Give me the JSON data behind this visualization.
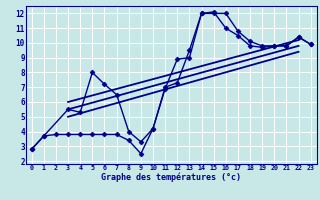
{
  "xlabel": "Graphe des températures (°c)",
  "bg_color": "#c8e8e8",
  "grid_color": "#ffffff",
  "line_color": "#00008b",
  "xlim": [
    -0.5,
    23.5
  ],
  "ylim": [
    1.8,
    12.5
  ],
  "xticks": [
    0,
    1,
    2,
    3,
    4,
    5,
    6,
    7,
    8,
    9,
    10,
    11,
    12,
    13,
    14,
    15,
    16,
    17,
    18,
    19,
    20,
    21,
    22,
    23
  ],
  "yticks": [
    2,
    3,
    4,
    5,
    6,
    7,
    8,
    9,
    10,
    11,
    12
  ],
  "series": [
    {
      "x": [
        0,
        1,
        3,
        4,
        5,
        6,
        7,
        8,
        9,
        10,
        11,
        12,
        13,
        14,
        15,
        16,
        17,
        18,
        19,
        20,
        21,
        22,
        23
      ],
      "y": [
        2.8,
        3.7,
        5.5,
        5.3,
        8.0,
        7.2,
        6.5,
        4.0,
        3.3,
        4.2,
        7.0,
        7.3,
        9.5,
        12.0,
        12.1,
        11.0,
        10.5,
        9.8,
        9.7,
        9.8,
        9.8,
        10.4,
        9.9
      ],
      "marker": "D",
      "markersize": 2.5,
      "linewidth": 1.0,
      "zorder": 3
    },
    {
      "x": [
        0,
        1,
        2,
        3,
        4,
        5,
        6,
        7,
        8,
        9,
        10,
        11,
        12,
        13,
        14,
        15,
        16,
        17,
        18,
        19,
        20,
        21,
        22,
        23
      ],
      "y": [
        2.8,
        3.7,
        3.8,
        3.8,
        3.8,
        3.8,
        3.8,
        3.8,
        3.4,
        2.5,
        4.2,
        6.9,
        8.9,
        9.0,
        12.0,
        12.0,
        12.0,
        10.8,
        10.1,
        9.8,
        9.8,
        9.8,
        10.4,
        9.9
      ],
      "marker": "D",
      "markersize": 2.5,
      "linewidth": 1.0,
      "zorder": 3
    },
    {
      "x": [
        3,
        22
      ],
      "y": [
        6.0,
        10.2
      ],
      "marker": null,
      "markersize": 0,
      "linewidth": 1.3,
      "zorder": 2
    },
    {
      "x": [
        3,
        22
      ],
      "y": [
        5.5,
        9.8
      ],
      "marker": null,
      "markersize": 0,
      "linewidth": 1.3,
      "zorder": 2
    },
    {
      "x": [
        3,
        22
      ],
      "y": [
        5.0,
        9.4
      ],
      "marker": null,
      "markersize": 0,
      "linewidth": 1.3,
      "zorder": 2
    }
  ]
}
